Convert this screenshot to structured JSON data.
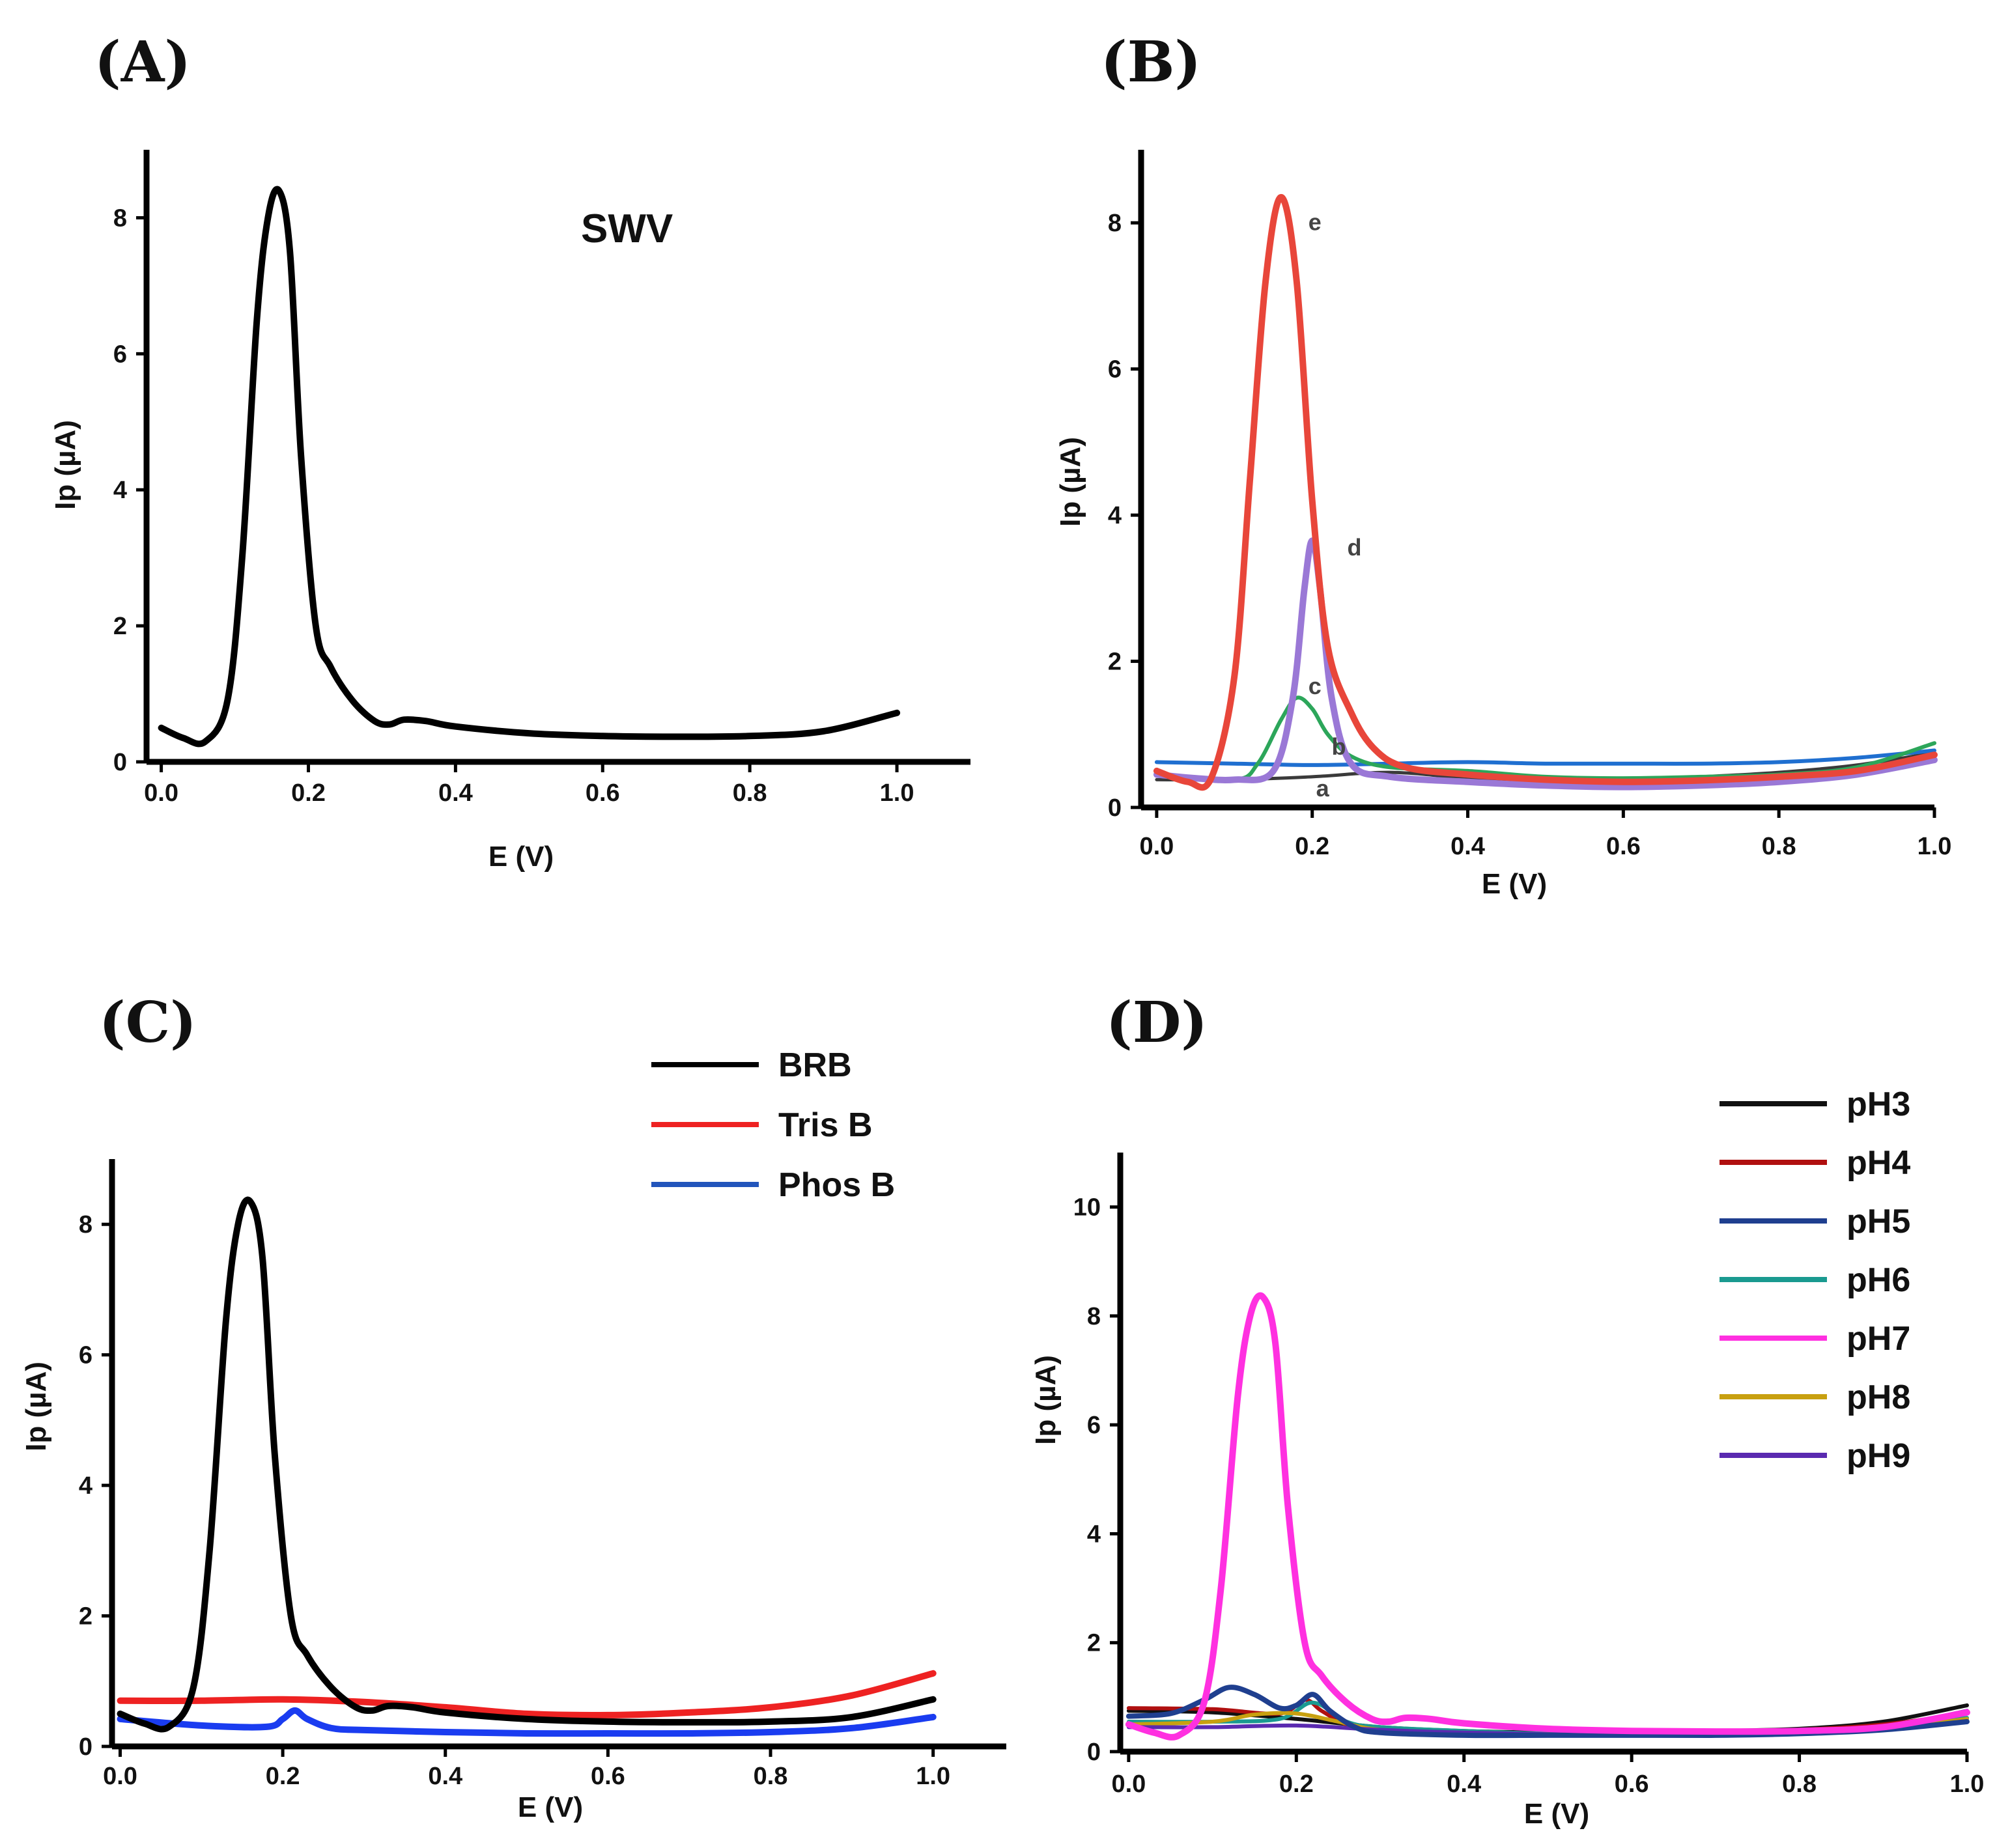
{
  "figure": {
    "panels": [
      "(A)",
      "(B)",
      "(C)",
      "(D)"
    ]
  },
  "chart_data": [
    {
      "id": "A",
      "panel_label": "(A)",
      "type": "line",
      "annotation": "SWV",
      "xlabel": "E (V)",
      "ylabel": "Ip (µA)",
      "xlim": [
        -0.02,
        1.1
      ],
      "ylim": [
        0,
        9
      ],
      "xticks": [
        "0.0",
        "0.2",
        "0.4",
        "0.6",
        "0.8",
        "1.0"
      ],
      "xtick_values": [
        0,
        0.2,
        0.4,
        0.6,
        0.8,
        1.0
      ],
      "yticks": [
        "0",
        "2",
        "4",
        "6",
        "8"
      ],
      "ytick_values": [
        0,
        2,
        4,
        6,
        8
      ],
      "legend": [],
      "series": [
        {
          "name": "SWV",
          "color": "#000000",
          "width": 10,
          "x": [
            0.0,
            0.03,
            0.06,
            0.09,
            0.11,
            0.13,
            0.145,
            0.16,
            0.175,
            0.19,
            0.21,
            0.23,
            0.26,
            0.29,
            0.31,
            0.33,
            0.36,
            0.4,
            0.5,
            0.6,
            0.7,
            0.8,
            0.9,
            1.0
          ],
          "y": [
            0.5,
            0.35,
            0.3,
            0.9,
            3.0,
            6.5,
            8.0,
            8.4,
            7.5,
            4.5,
            2.0,
            1.4,
            0.9,
            0.6,
            0.55,
            0.62,
            0.6,
            0.52,
            0.42,
            0.38,
            0.37,
            0.38,
            0.45,
            0.72
          ]
        }
      ]
    },
    {
      "id": "B",
      "panel_label": "(B)",
      "type": "line",
      "xlabel": "E (V)",
      "ylabel": "Ip (µA)",
      "xlim": [
        -0.02,
        1.0
      ],
      "ylim": [
        0,
        9
      ],
      "xticks": [
        "0.0",
        "0.2",
        "0.4",
        "0.6",
        "0.8",
        "1.0"
      ],
      "xtick_values": [
        0,
        0.2,
        0.4,
        0.6,
        0.8,
        1.0
      ],
      "yticks": [
        "0",
        "2",
        "4",
        "6",
        "8"
      ],
      "ytick_values": [
        0,
        2,
        4,
        6,
        8
      ],
      "legend": [],
      "curve_labels": [
        {
          "text": "a",
          "x": 0.205,
          "y": 0.15
        },
        {
          "text": "b",
          "x": 0.225,
          "y": 0.72
        },
        {
          "text": "c",
          "x": 0.195,
          "y": 1.55
        },
        {
          "text": "d",
          "x": 0.245,
          "y": 3.45
        },
        {
          "text": "e",
          "x": 0.195,
          "y": 7.9
        }
      ],
      "series": [
        {
          "name": "a",
          "color": "#3a3a3a",
          "width": 5,
          "x": [
            0.0,
            0.1,
            0.2,
            0.3,
            0.4,
            0.5,
            0.6,
            0.7,
            0.8,
            0.9,
            1.0
          ],
          "y": [
            0.38,
            0.38,
            0.42,
            0.48,
            0.4,
            0.35,
            0.38,
            0.42,
            0.48,
            0.58,
            0.75
          ]
        },
        {
          "name": "b",
          "color": "#1f6fd0",
          "width": 6,
          "x": [
            0.0,
            0.1,
            0.2,
            0.3,
            0.4,
            0.5,
            0.6,
            0.7,
            0.8,
            0.9,
            1.0
          ],
          "y": [
            0.62,
            0.6,
            0.58,
            0.6,
            0.62,
            0.6,
            0.6,
            0.6,
            0.62,
            0.68,
            0.78
          ]
        },
        {
          "name": "c",
          "color": "#2ca65a",
          "width": 6,
          "x": [
            0.0,
            0.1,
            0.13,
            0.16,
            0.18,
            0.2,
            0.22,
            0.25,
            0.3,
            0.4,
            0.5,
            0.6,
            0.7,
            0.8,
            0.9,
            1.0
          ],
          "y": [
            0.45,
            0.38,
            0.6,
            1.2,
            1.5,
            1.35,
            1.0,
            0.7,
            0.55,
            0.5,
            0.42,
            0.4,
            0.42,
            0.45,
            0.55,
            0.88
          ]
        },
        {
          "name": "d",
          "color": "#9a78d6",
          "width": 10,
          "x": [
            0.0,
            0.05,
            0.1,
            0.15,
            0.175,
            0.19,
            0.2,
            0.21,
            0.225,
            0.25,
            0.3,
            0.4,
            0.5,
            0.6,
            0.7,
            0.8,
            0.9,
            1.0
          ],
          "y": [
            0.45,
            0.4,
            0.38,
            0.5,
            1.5,
            3.0,
            3.65,
            3.0,
            1.5,
            0.6,
            0.42,
            0.35,
            0.3,
            0.28,
            0.3,
            0.35,
            0.45,
            0.65
          ]
        },
        {
          "name": "e",
          "color": "#e8463a",
          "width": 10,
          "x": [
            0.0,
            0.04,
            0.07,
            0.1,
            0.12,
            0.14,
            0.16,
            0.18,
            0.2,
            0.22,
            0.25,
            0.28,
            0.32,
            0.4,
            0.5,
            0.6,
            0.7,
            0.8,
            0.9,
            1.0
          ],
          "y": [
            0.5,
            0.35,
            0.4,
            1.8,
            4.5,
            7.2,
            8.35,
            7.2,
            4.2,
            2.2,
            1.3,
            0.8,
            0.55,
            0.45,
            0.38,
            0.35,
            0.37,
            0.42,
            0.5,
            0.72
          ]
        }
      ]
    },
    {
      "id": "C",
      "panel_label": "(C)",
      "type": "line",
      "xlabel": "E (V)",
      "ylabel": "Ip (µA)",
      "xlim": [
        -0.01,
        1.09
      ],
      "ylim": [
        0,
        9
      ],
      "xticks": [
        "0.0",
        "0.2",
        "0.4",
        "0.6",
        "0.8",
        "1.0"
      ],
      "xtick_values": [
        0,
        0.2,
        0.4,
        0.6,
        0.8,
        1.0
      ],
      "yticks": [
        "0",
        "2",
        "4",
        "6",
        "8"
      ],
      "ytick_values": [
        0,
        2,
        4,
        6,
        8
      ],
      "legend": [
        {
          "label": "BRB",
          "color": "#000000"
        },
        {
          "label": "Tris B",
          "color": "#ee2222"
        },
        {
          "label": "Phos B",
          "color": "#2255bb"
        }
      ],
      "series": [
        {
          "name": "Tris B",
          "color": "#ee2222",
          "width": 10,
          "x": [
            0.0,
            0.1,
            0.2,
            0.3,
            0.4,
            0.5,
            0.6,
            0.7,
            0.8,
            0.9,
            1.0
          ],
          "y": [
            0.7,
            0.7,
            0.72,
            0.68,
            0.6,
            0.5,
            0.48,
            0.52,
            0.6,
            0.78,
            1.12
          ]
        },
        {
          "name": "Phos B",
          "color": "#1a3cf0",
          "width": 10,
          "x": [
            0.0,
            0.1,
            0.18,
            0.2,
            0.215,
            0.23,
            0.26,
            0.3,
            0.4,
            0.5,
            0.6,
            0.7,
            0.8,
            0.9,
            1.0
          ],
          "y": [
            0.42,
            0.32,
            0.3,
            0.42,
            0.55,
            0.42,
            0.28,
            0.25,
            0.22,
            0.2,
            0.2,
            0.2,
            0.22,
            0.28,
            0.45
          ]
        },
        {
          "name": "BRB",
          "color": "#000000",
          "width": 10,
          "x": [
            0.0,
            0.03,
            0.06,
            0.09,
            0.11,
            0.13,
            0.145,
            0.16,
            0.175,
            0.19,
            0.21,
            0.23,
            0.26,
            0.29,
            0.31,
            0.33,
            0.36,
            0.4,
            0.5,
            0.6,
            0.7,
            0.8,
            0.9,
            1.0
          ],
          "y": [
            0.5,
            0.35,
            0.3,
            0.9,
            3.0,
            6.5,
            8.0,
            8.35,
            7.5,
            4.5,
            2.0,
            1.4,
            0.9,
            0.6,
            0.55,
            0.62,
            0.6,
            0.52,
            0.42,
            0.38,
            0.37,
            0.38,
            0.45,
            0.72
          ]
        }
      ]
    },
    {
      "id": "D",
      "panel_label": "(D)",
      "type": "line",
      "xlabel": "E (V)",
      "ylabel": "Ip (µA)",
      "xlim": [
        -0.01,
        1.0
      ],
      "ylim": [
        0,
        11
      ],
      "xticks": [
        "0.0",
        "0.2",
        "0.4",
        "0.6",
        "0.8",
        "1.0"
      ],
      "xtick_values": [
        0,
        0.2,
        0.4,
        0.6,
        0.8,
        1.0
      ],
      "yticks": [
        "0",
        "2",
        "4",
        "6",
        "8",
        "10"
      ],
      "ytick_values": [
        0,
        2,
        4,
        6,
        8,
        10
      ],
      "legend": [
        {
          "label": "pH3",
          "color": "#111111"
        },
        {
          "label": "pH4",
          "color": "#b01010"
        },
        {
          "label": "pH5",
          "color": "#1f3f8f"
        },
        {
          "label": "pH6",
          "color": "#1a9a90"
        },
        {
          "label": "pH7",
          "color": "#ff30e0"
        },
        {
          "label": "pH8",
          "color": "#c8a010"
        },
        {
          "label": "pH9",
          "color": "#5a2ab0"
        }
      ],
      "series": [
        {
          "name": "pH3",
          "color": "#111111",
          "width": 6,
          "x": [
            0.0,
            0.1,
            0.2,
            0.3,
            0.4,
            0.5,
            0.6,
            0.7,
            0.8,
            0.9,
            1.0
          ],
          "y": [
            0.75,
            0.72,
            0.6,
            0.45,
            0.38,
            0.35,
            0.35,
            0.38,
            0.42,
            0.55,
            0.85
          ]
        },
        {
          "name": "pH4",
          "color": "#b01010",
          "width": 6,
          "x": [
            0.0,
            0.1,
            0.18,
            0.21,
            0.23,
            0.26,
            0.3,
            0.4,
            0.5,
            0.6,
            0.7,
            0.8,
            0.9,
            1.0
          ],
          "y": [
            0.8,
            0.78,
            0.7,
            0.95,
            0.75,
            0.5,
            0.4,
            0.35,
            0.32,
            0.32,
            0.35,
            0.4,
            0.5,
            0.7
          ]
        },
        {
          "name": "pH6",
          "color": "#1a9a90",
          "width": 6,
          "x": [
            0.0,
            0.1,
            0.18,
            0.22,
            0.26,
            0.3,
            0.4,
            0.5,
            0.6,
            0.7,
            0.8,
            0.9,
            1.0
          ],
          "y": [
            0.55,
            0.55,
            0.6,
            0.9,
            0.55,
            0.45,
            0.38,
            0.33,
            0.32,
            0.32,
            0.35,
            0.42,
            0.62
          ]
        },
        {
          "name": "pH8",
          "color": "#c8a010",
          "width": 6,
          "x": [
            0.0,
            0.1,
            0.15,
            0.2,
            0.25,
            0.3,
            0.4,
            0.5,
            0.6,
            0.7,
            0.8,
            0.9,
            1.0
          ],
          "y": [
            0.5,
            0.55,
            0.68,
            0.7,
            0.55,
            0.4,
            0.34,
            0.32,
            0.3,
            0.32,
            0.35,
            0.42,
            0.6
          ]
        },
        {
          "name": "pH9",
          "color": "#5a2ab0",
          "width": 6,
          "x": [
            0.0,
            0.1,
            0.2,
            0.3,
            0.4,
            0.5,
            0.6,
            0.7,
            0.8,
            0.9,
            1.0
          ],
          "y": [
            0.45,
            0.45,
            0.48,
            0.4,
            0.35,
            0.32,
            0.3,
            0.32,
            0.36,
            0.45,
            0.75
          ]
        },
        {
          "name": "pH5",
          "color": "#1f3f8f",
          "width": 8,
          "x": [
            0.0,
            0.05,
            0.09,
            0.12,
            0.15,
            0.18,
            0.2,
            0.22,
            0.24,
            0.27,
            0.3,
            0.4,
            0.5,
            0.6,
            0.7,
            0.8,
            0.9,
            1.0
          ],
          "y": [
            0.65,
            0.7,
            0.95,
            1.18,
            1.05,
            0.8,
            0.85,
            1.05,
            0.75,
            0.45,
            0.35,
            0.3,
            0.3,
            0.3,
            0.3,
            0.33,
            0.4,
            0.55
          ]
        },
        {
          "name": "pH7",
          "color": "#ff30e0",
          "width": 10,
          "x": [
            0.0,
            0.03,
            0.06,
            0.09,
            0.11,
            0.13,
            0.145,
            0.16,
            0.175,
            0.19,
            0.21,
            0.23,
            0.26,
            0.29,
            0.31,
            0.33,
            0.36,
            0.4,
            0.5,
            0.6,
            0.7,
            0.8,
            0.9,
            1.0
          ],
          "y": [
            0.5,
            0.35,
            0.3,
            0.9,
            3.0,
            6.5,
            8.0,
            8.35,
            7.5,
            4.5,
            2.0,
            1.4,
            0.9,
            0.6,
            0.55,
            0.62,
            0.6,
            0.52,
            0.42,
            0.38,
            0.37,
            0.38,
            0.45,
            0.72
          ]
        }
      ]
    }
  ]
}
